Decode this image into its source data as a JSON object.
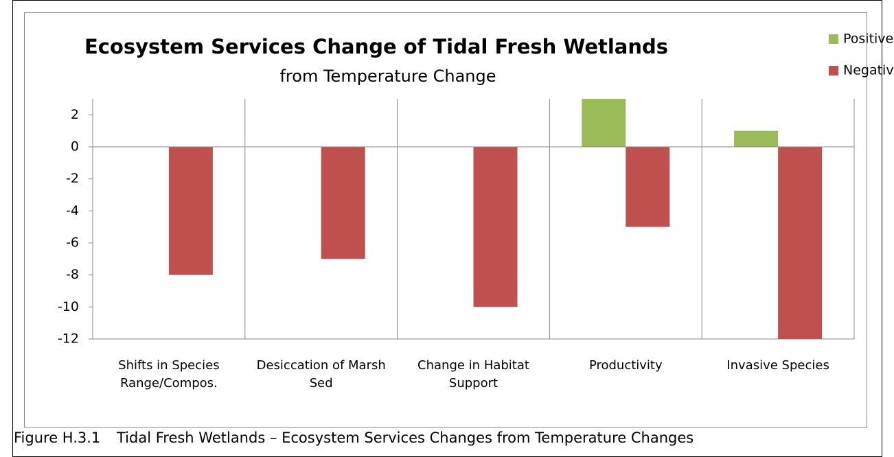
{
  "chart_data": {
    "type": "bar",
    "title": "Ecosystem Services Change of Tidal Fresh Wetlands",
    "subtitle": "from Temperature Change",
    "categories": [
      "Shifts in Species Range/Compos.",
      "Desiccation of Marsh Sed",
      "Change in Habitat Support",
      "Productivity",
      "Invasive Species"
    ],
    "series": [
      {
        "name": "Positive Change",
        "color": "#9bbb59",
        "values": [
          0,
          0,
          0,
          3,
          1
        ]
      },
      {
        "name": "Negative Change",
        "color": "#c0504d",
        "values": [
          -8,
          -7,
          -10,
          -5,
          -12
        ]
      }
    ],
    "ylim": [
      -12,
      3
    ],
    "yticks": [
      -12,
      -10,
      -8,
      -6,
      -4,
      -2,
      0,
      2
    ],
    "grid": false,
    "legend": "top-right"
  },
  "caption": {
    "label": "Figure H.3.1",
    "text": "Tidal Fresh Wetlands – Ecosystem Services Changes from Temperature Changes"
  }
}
